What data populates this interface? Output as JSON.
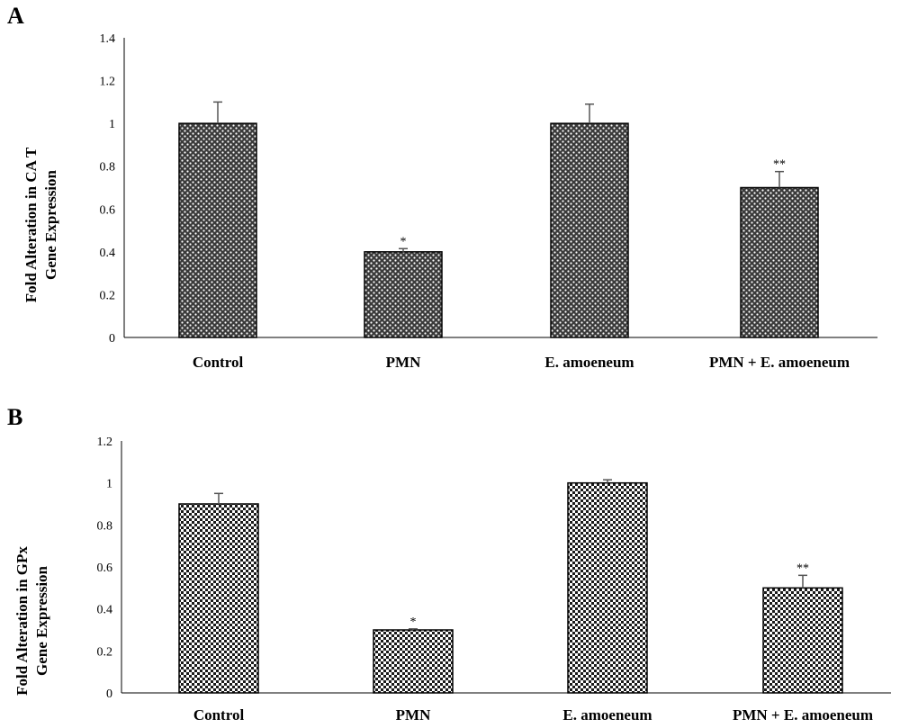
{
  "chart_data": [
    {
      "type": "bar",
      "panel_label": "A",
      "categories": [
        "Control",
        "PMN",
        "E. amoeneum",
        "PMN + E. amoeneum"
      ],
      "values": [
        1.0,
        0.4,
        1.0,
        0.7
      ],
      "errors": [
        0.1,
        0.015,
        0.09,
        0.075
      ],
      "significance": [
        "",
        "*",
        "",
        "**"
      ],
      "ylabel_lines": [
        "Fold Alteration in CA T",
        "Gene Expression"
      ],
      "ylim": [
        0,
        1.4
      ],
      "yticks": [
        "0",
        "0.2",
        "0.4",
        "0.6",
        "0.8",
        "1",
        "1.2",
        "1.4"
      ],
      "grid": false,
      "fill_pattern": "dotted"
    },
    {
      "type": "bar",
      "panel_label": "B",
      "categories": [
        "Control",
        "PMN",
        "E. amoeneum",
        "PMN + E. amoeneum"
      ],
      "values": [
        0.9,
        0.3,
        1.0,
        0.5
      ],
      "errors": [
        0.05,
        0.005,
        0.015,
        0.06
      ],
      "significance": [
        "",
        "*",
        "",
        "**"
      ],
      "ylabel_lines": [
        "Fold Alteration in GPx",
        "Gene Expression"
      ],
      "ylim": [
        0,
        1.2
      ],
      "yticks": [
        "0",
        "0.2",
        "0.4",
        "0.6",
        "0.8",
        "1",
        "1.2"
      ],
      "grid": false,
      "fill_pattern": "checkered"
    }
  ]
}
